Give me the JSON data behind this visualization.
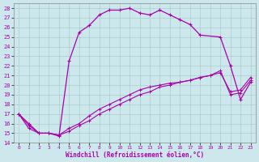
{
  "xlabel": "Windchill (Refroidissement éolien,°C)",
  "bg_color": "#cce8ec",
  "line_color": "#aa00aa",
  "xlim": [
    -0.5,
    23.5
  ],
  "ylim": [
    14,
    28.5
  ],
  "xticks": [
    0,
    1,
    2,
    3,
    4,
    5,
    6,
    7,
    8,
    9,
    10,
    11,
    12,
    13,
    14,
    15,
    16,
    17,
    18,
    19,
    20,
    21,
    22,
    23
  ],
  "yticks": [
    14,
    15,
    16,
    17,
    18,
    19,
    20,
    21,
    22,
    23,
    24,
    25,
    26,
    27,
    28
  ],
  "line1_x": [
    0,
    1,
    2,
    3,
    4,
    5,
    6,
    7,
    8,
    9,
    10,
    11,
    12,
    13,
    14,
    15,
    16,
    17,
    18,
    20,
    21,
    22,
    23
  ],
  "line1_y": [
    17,
    16,
    15,
    15,
    14.7,
    22.5,
    25.5,
    26.2,
    27.3,
    27.8,
    27.8,
    28,
    27.5,
    27.3,
    27.8,
    27.3,
    26.8,
    26.3,
    25.2,
    25,
    22,
    18.5,
    20.3
  ],
  "line2_x": [
    0,
    1,
    2,
    3,
    4,
    5,
    6,
    7,
    8,
    9,
    10,
    11,
    12,
    13,
    14,
    15,
    16,
    17,
    18,
    19,
    20,
    21,
    22,
    23
  ],
  "line2_y": [
    17,
    15.5,
    15,
    15,
    14.8,
    15.5,
    16,
    16.8,
    17.5,
    18,
    18.5,
    19,
    19.5,
    19.8,
    20,
    20.2,
    20.3,
    20.5,
    20.8,
    21,
    21.5,
    19,
    19.2,
    20.5
  ],
  "line3_x": [
    0,
    1,
    2,
    3,
    4,
    5,
    6,
    7,
    8,
    9,
    10,
    11,
    12,
    13,
    14,
    15,
    16,
    17,
    18,
    19,
    20,
    21,
    22,
    23
  ],
  "line3_y": [
    17,
    15.8,
    15,
    15,
    14.8,
    15.2,
    15.8,
    16.3,
    17,
    17.5,
    18,
    18.5,
    19,
    19.3,
    19.8,
    20,
    20.3,
    20.5,
    20.8,
    21,
    21.3,
    19.3,
    19.5,
    20.8
  ],
  "grid_color": "#aacccc",
  "marker": "+"
}
